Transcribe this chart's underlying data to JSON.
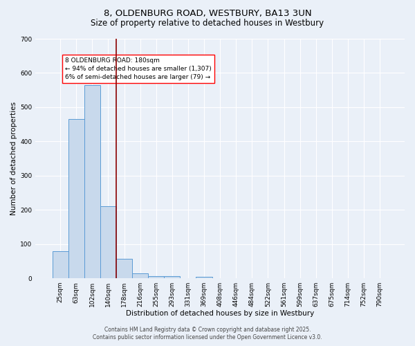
{
  "title": "8, OLDENBURG ROAD, WESTBURY, BA13 3UN",
  "subtitle": "Size of property relative to detached houses in Westbury",
  "xlabel": "Distribution of detached houses by size in Westbury",
  "ylabel": "Number of detached properties",
  "bar_labels": [
    "25sqm",
    "63sqm",
    "102sqm",
    "140sqm",
    "178sqm",
    "216sqm",
    "255sqm",
    "293sqm",
    "331sqm",
    "369sqm",
    "408sqm",
    "446sqm",
    "484sqm",
    "522sqm",
    "561sqm",
    "599sqm",
    "637sqm",
    "675sqm",
    "714sqm",
    "752sqm",
    "790sqm"
  ],
  "bar_values": [
    80,
    465,
    565,
    210,
    57,
    15,
    7,
    6,
    0,
    5,
    0,
    0,
    0,
    0,
    0,
    0,
    0,
    0,
    0,
    0,
    0
  ],
  "bar_color": "#c8d9ec",
  "bar_edge_color": "#5b9bd5",
  "vline_x_idx": 4,
  "vline_color": "#8B0000",
  "annotation_text": "8 OLDENBURG ROAD: 180sqm\n← 94% of detached houses are smaller (1,307)\n6% of semi-detached houses are larger (79) →",
  "annotation_box_color": "white",
  "annotation_box_edge": "red",
  "ylim": [
    0,
    700
  ],
  "yticks": [
    0,
    100,
    200,
    300,
    400,
    500,
    600,
    700
  ],
  "bg_color": "#eaf0f8",
  "plot_bg_color": "#eaf0f8",
  "grid_color": "white",
  "footer_line1": "Contains HM Land Registry data © Crown copyright and database right 2025.",
  "footer_line2": "Contains public sector information licensed under the Open Government Licence v3.0.",
  "title_fontsize": 9.5,
  "subtitle_fontsize": 8.5,
  "axis_label_fontsize": 7.5,
  "tick_fontsize": 6.5,
  "annotation_fontsize": 6.5,
  "footer_fontsize": 5.5
}
